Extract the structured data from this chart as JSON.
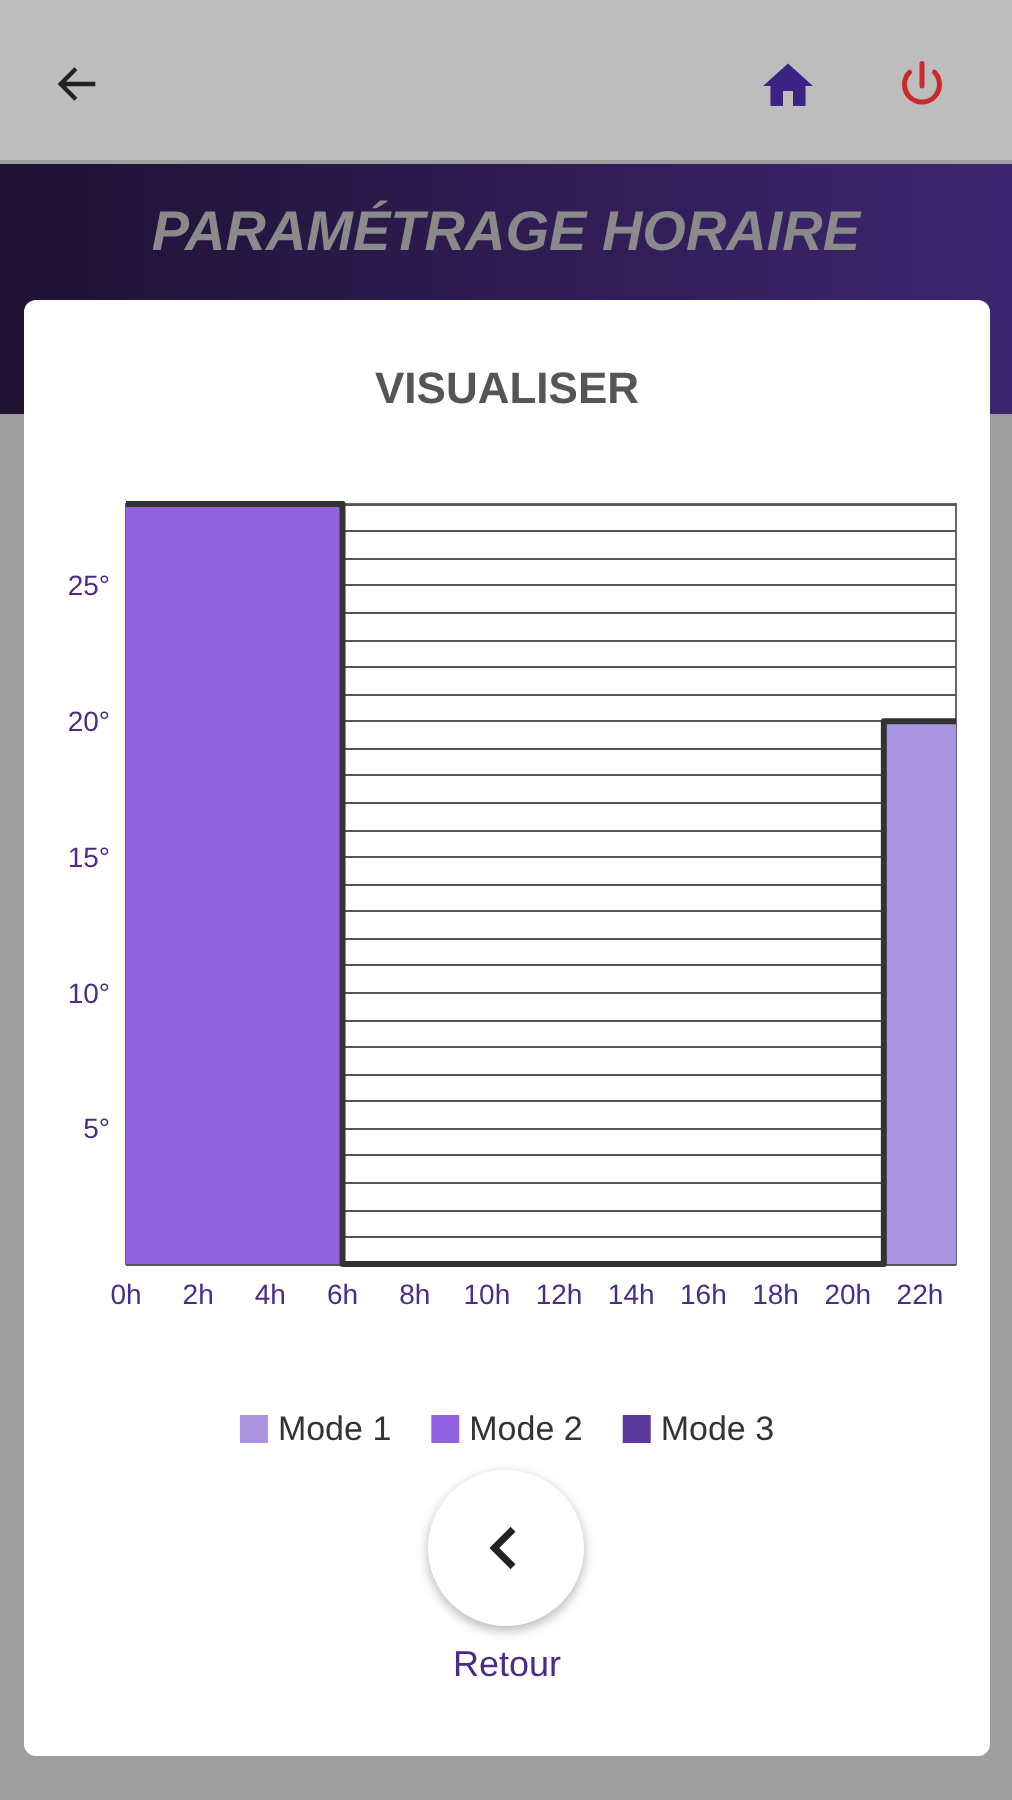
{
  "chart_data": {
    "type": "step",
    "title": "VISUALISER",
    "annotations": [
      "PARAMÉTRAGE HORAIRE",
      "Retour"
    ],
    "xlim": [
      0,
      23
    ],
    "xticks": [
      {
        "value": 0,
        "label": "0h"
      },
      {
        "value": 2,
        "label": "2h"
      },
      {
        "value": 4,
        "label": "4h"
      },
      {
        "value": 6,
        "label": "6h"
      },
      {
        "value": 8,
        "label": "8h"
      },
      {
        "value": 10,
        "label": "10h"
      },
      {
        "value": 12,
        "label": "12h"
      },
      {
        "value": 14,
        "label": "14h"
      },
      {
        "value": 16,
        "label": "16h"
      },
      {
        "value": 18,
        "label": "18h"
      },
      {
        "value": 20,
        "label": "20h"
      },
      {
        "value": 22,
        "label": "22h"
      }
    ],
    "ylim": [
      0,
      28
    ],
    "yticks": [
      {
        "value": 0,
        "label": null
      },
      {
        "value": 1,
        "label": null
      },
      {
        "value": 2,
        "label": null
      },
      {
        "value": 3,
        "label": null
      },
      {
        "value": 4,
        "label": null
      },
      {
        "value": 5,
        "label": "5°"
      },
      {
        "value": 6,
        "label": null
      },
      {
        "value": 7,
        "label": null
      },
      {
        "value": 8,
        "label": null
      },
      {
        "value": 9,
        "label": null
      },
      {
        "value": 10,
        "label": "10°"
      },
      {
        "value": 11,
        "label": null
      },
      {
        "value": 12,
        "label": null
      },
      {
        "value": 13,
        "label": null
      },
      {
        "value": 14,
        "label": null
      },
      {
        "value": 15,
        "label": "15°"
      },
      {
        "value": 16,
        "label": null
      },
      {
        "value": 17,
        "label": null
      },
      {
        "value": 18,
        "label": null
      },
      {
        "value": 19,
        "label": null
      },
      {
        "value": 20,
        "label": "20°"
      },
      {
        "value": 21,
        "label": null
      },
      {
        "value": 22,
        "label": null
      },
      {
        "value": 23,
        "label": null
      },
      {
        "value": 24,
        "label": null
      },
      {
        "value": 25,
        "label": "25°"
      },
      {
        "value": 26,
        "label": null
      },
      {
        "value": 27,
        "label": null
      },
      {
        "value": 28,
        "label": null
      }
    ],
    "grid": "y",
    "legend": "bottom",
    "marker": "none",
    "series": [
      {
        "name": "Mode 1",
        "type": "area",
        "color": "#a994e0",
        "x": [
          21,
          23
        ],
        "values": [
          20,
          20
        ]
      },
      {
        "name": "Mode 2",
        "type": "area",
        "color": "#9063e0",
        "x": [
          0,
          6
        ],
        "values": [
          28,
          28
        ]
      },
      {
        "name": "Mode 3",
        "type": "area",
        "color": "#5b3a9e"
      },
      {
        "color": "#333333",
        "x": [
          0,
          6,
          21,
          23
        ],
        "values": [
          28,
          0,
          20,
          20
        ]
      }
    ]
  }
}
